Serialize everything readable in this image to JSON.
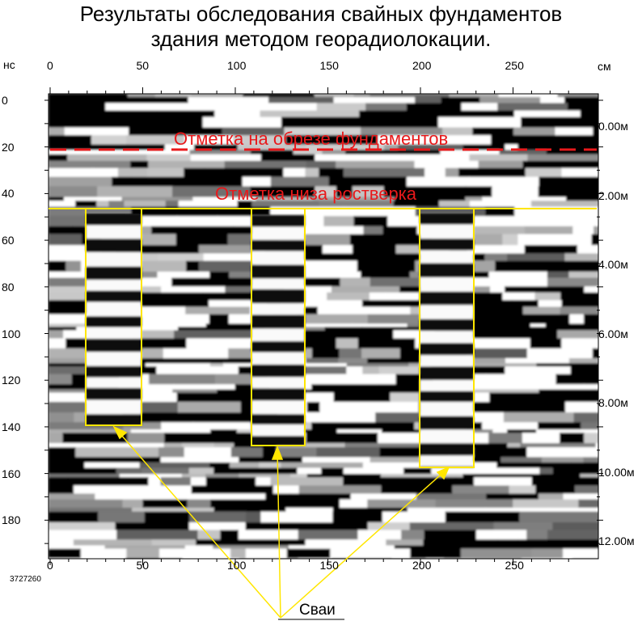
{
  "title": {
    "line1": "Результаты обследования свайных фундаментов",
    "line2": "здания методом георадиолокации."
  },
  "axes": {
    "left_unit": "нс",
    "top_unit": "см",
    "top_ticks": [
      "0",
      "50",
      "100",
      "150",
      "200",
      "250"
    ],
    "bottom_ticks": [
      "0",
      "50",
      "100",
      "150",
      "200",
      "250"
    ],
    "left_ticks": [
      "0",
      "20",
      "40",
      "60",
      "80",
      "100",
      "120",
      "140",
      "160",
      "180"
    ],
    "right_ticks": [
      "0.00м",
      "2.00м",
      "4.00м",
      "6.00м",
      "8.00м",
      "10.00м",
      "12.00м"
    ]
  },
  "annotations": {
    "foundation_cut": "Отметка на обрезе фундаментов",
    "grillage_bottom": "Отметка низа ростверка",
    "piles": "Сваи"
  },
  "file_id": "3727260",
  "colors": {
    "annotation_red": "#e8191b",
    "outline_yellow": "#ffe600"
  }
}
